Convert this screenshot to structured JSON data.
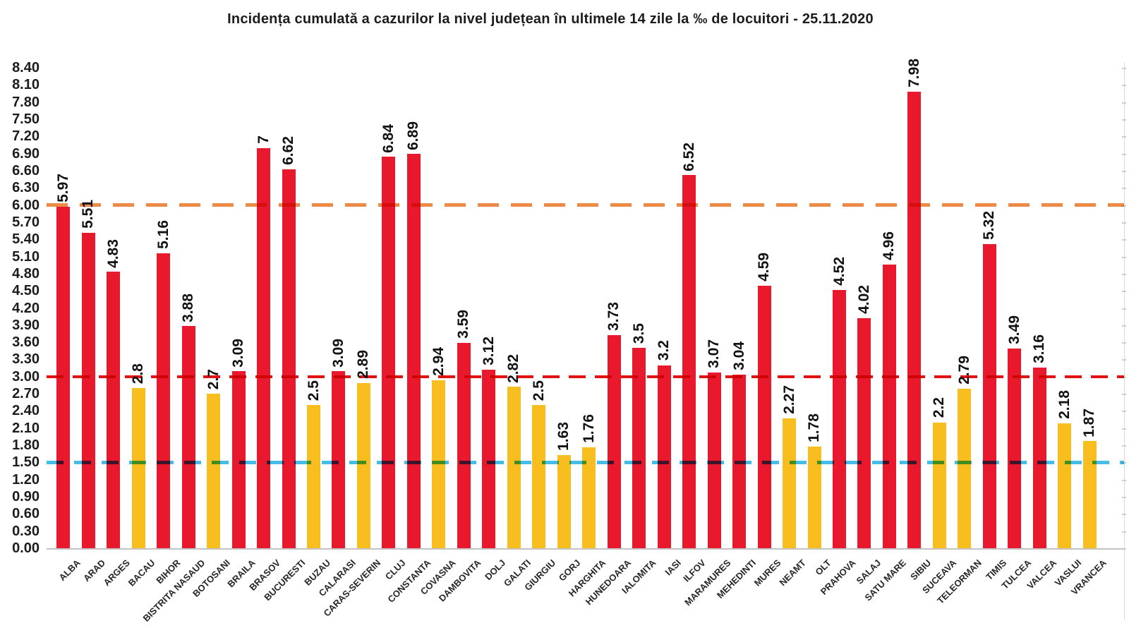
{
  "chart_data": {
    "type": "bar",
    "title": "Incidența cumulată a cazurilor la nivel județean în ultimele 14 zile la ‰ de locuitori - 25.11.2020",
    "categories": [
      "ALBA",
      "ARAD",
      "ARGES",
      "BACAU",
      "BIHOR",
      "BISTRITA NASAUD",
      "BOTOSANI",
      "BRAILA",
      "BRASOV",
      "BUCURESTI",
      "BUZAU",
      "CALARASI",
      "CARAS-SEVERIN",
      "CLUJ",
      "CONSTANTA",
      "COVASNA",
      "DAMBOVITA",
      "DOLJ",
      "GALATI",
      "GIURGIU",
      "GORJ",
      "HARGHITA",
      "HUNEDOARA",
      "IALOMITA",
      "IASI",
      "ILFOV",
      "MARAMURES",
      "MEHEDINTI",
      "MURES",
      "NEAMT",
      "OLT",
      "PRAHOVA",
      "SALAJ",
      "SATU MARE",
      "SIBIU",
      "SUCEAVA",
      "TELEORMAN",
      "TIMIS",
      "TULCEA",
      "VALCEA",
      "VASLUI",
      "VRANCEA"
    ],
    "values": [
      5.97,
      5.51,
      4.83,
      2.8,
      5.16,
      3.88,
      2.7,
      3.09,
      7,
      6.62,
      2.5,
      3.09,
      2.89,
      6.84,
      6.89,
      2.94,
      3.59,
      3.12,
      2.82,
      2.5,
      1.63,
      1.76,
      3.73,
      3.5,
      3.2,
      6.52,
      3.07,
      3.04,
      4.59,
      2.27,
      1.78,
      4.52,
      4.02,
      4.96,
      7.98,
      2.2,
      2.79,
      5.32,
      3.49,
      3.16,
      2.18,
      1.87
    ],
    "value_labels": [
      "5.97",
      "5.51",
      "4.83",
      "2.8",
      "5.16",
      "3.88",
      "2.7",
      "3.09",
      "7",
      "6.62",
      "2.5",
      "3.09",
      "2.89",
      "6.84",
      "6.89",
      "2.94",
      "3.59",
      "3.12",
      "2.82",
      "2.5",
      "1.63",
      "1.76",
      "3.73",
      "3.5",
      "3.2",
      "6.52",
      "3.07",
      "3.04",
      "4.59",
      "2.27",
      "1.78",
      "4.52",
      "4.02",
      "4.96",
      "7.98",
      "2.2",
      "2.79",
      "5.32",
      "3.49",
      "3.16",
      "2.18",
      "1.87"
    ],
    "bar_color_rule": {
      "high_threshold": 3,
      "high_color": "#e8192d",
      "low_color": "#f8bd1f"
    },
    "thresholds": [
      {
        "value": 6.0,
        "color": "#ec8b45",
        "style": "dashed",
        "thickness": 5,
        "dash": 30,
        "gap": 17
      },
      {
        "value": 3.0,
        "color": "#e31212",
        "style": "dashed",
        "thickness": 4,
        "dash": 24,
        "gap": 13
      },
      {
        "value": 1.5,
        "color": "#45bde8",
        "style": "dashed",
        "thickness": 5,
        "dash": 24,
        "gap": 15
      }
    ],
    "ylim": [
      0,
      8.4
    ],
    "ytick_labels": [
      "8.40",
      "8.10",
      "7.80",
      "7.50",
      "7.20",
      "6.90",
      "6.60",
      "6.30",
      "6.00",
      "5.70",
      "5.40",
      "5.10",
      "4.80",
      "4.50",
      "4.20",
      "3.90",
      "3.60",
      "3.30",
      "3.00",
      "2.70",
      "2.40",
      "2.10",
      "1.80",
      "1.50",
      "1.20",
      "0.90",
      "0.60",
      "0.30",
      "0.00"
    ],
    "xlabel": "",
    "ylabel": "",
    "grid": "off",
    "legend": "none"
  }
}
